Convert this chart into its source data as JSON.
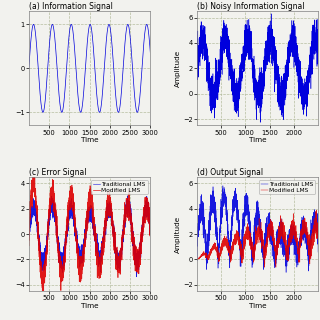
{
  "title_a": "(a) Information Signal",
  "title_b": "(b) Noisy Information Signal",
  "title_c": "(c) Error Signal",
  "title_d": "(d) Output Signal",
  "xlabel": "Time",
  "ylabel_b": "Amplitude",
  "ylabel_d": "Amplitude",
  "legend_trad": "Traditional LMS",
  "legend_mod": "Modified LMS",
  "bg_color": "#f2f2ee",
  "blue_color": "#0000dd",
  "red_color": "#dd0000",
  "grid_color": "#b0b898",
  "title_fontsize": 5.5,
  "tick_fontsize": 4.8,
  "label_fontsize": 5.2,
  "legend_fontsize": 4.2
}
